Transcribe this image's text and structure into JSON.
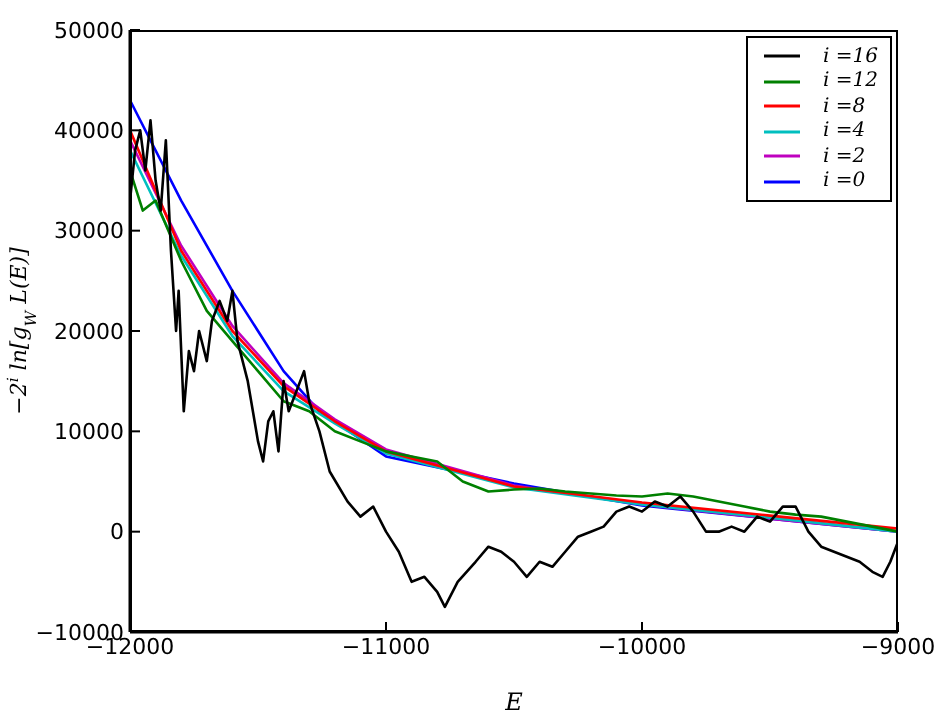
{
  "chart_data": {
    "type": "line",
    "xlabel": "E",
    "ylabel": "−2$^{i}$ ln[g$_{W}$ L(E)]",
    "xlim": [
      -12000,
      -9000
    ],
    "xticks": [
      -12000,
      -11000,
      -10000,
      -9000
    ],
    "ylim": [
      -10000,
      50000
    ],
    "yticks": [
      -10000,
      0,
      10000,
      20000,
      30000,
      40000,
      50000
    ],
    "grid": false,
    "legend": "top right",
    "marker": "none",
    "line_style": "solid",
    "series": [
      {
        "name": "i =16",
        "color": "#000000",
        "x": [
          -12000,
          -11980,
          -11960,
          -11940,
          -11920,
          -11900,
          -11880,
          -11860,
          -11840,
          -11820,
          -11810,
          -11790,
          -11770,
          -11750,
          -11730,
          -11700,
          -11680,
          -11650,
          -11620,
          -11600,
          -11580,
          -11560,
          -11540,
          -11500,
          -11480,
          -11460,
          -11440,
          -11420,
          -11400,
          -11380,
          -11350,
          -11320,
          -11300,
          -11260,
          -11220,
          -11150,
          -11100,
          -11050,
          -11000,
          -10950,
          -10900,
          -10850,
          -10800,
          -10770,
          -10720,
          -10650,
          -10600,
          -10550,
          -10500,
          -10450,
          -10400,
          -10350,
          -10300,
          -10250,
          -10200,
          -10150,
          -10100,
          -10050,
          -10000,
          -9950,
          -9900,
          -9850,
          -9800,
          -9750,
          -9700,
          -9650,
          -9600,
          -9550,
          -9500,
          -9450,
          -9400,
          -9350,
          -9300,
          -9200,
          -9150,
          -9100,
          -9060,
          -9030,
          -9000
        ],
        "values": [
          33000,
          38000,
          40000,
          36000,
          41000,
          35000,
          32000,
          39000,
          28000,
          20000,
          24000,
          12000,
          18000,
          16000,
          20000,
          17000,
          21000,
          23000,
          21000,
          24000,
          19000,
          17000,
          15000,
          9000,
          7000,
          11000,
          12000,
          8000,
          15000,
          12000,
          14000,
          16000,
          13000,
          10000,
          6000,
          3000,
          1500,
          2500,
          0,
          -2000,
          -5000,
          -4500,
          -6000,
          -7500,
          -5000,
          -3000,
          -1500,
          -2000,
          -3000,
          -4500,
          -3000,
          -3500,
          -2000,
          -500,
          0,
          500,
          2000,
          2500,
          2000,
          3000,
          2500,
          3500,
          2000,
          0,
          0,
          500,
          0,
          1500,
          1000,
          2500,
          2500,
          0,
          -1500,
          -2500,
          -3000,
          -4000,
          -4500,
          -3000,
          -1000
        ]
      },
      {
        "name": "i =12",
        "color": "#008000",
        "x": [
          -12000,
          -11950,
          -11900,
          -11850,
          -11800,
          -11700,
          -11600,
          -11500,
          -11400,
          -11300,
          -11200,
          -11100,
          -11000,
          -10900,
          -10800,
          -10700,
          -10600,
          -10500,
          -10400,
          -10300,
          -10200,
          -10100,
          -10000,
          -9900,
          -9800,
          -9700,
          -9600,
          -9500,
          -9400,
          -9300,
          -9200,
          -9100,
          -9000
        ],
        "values": [
          36000,
          32000,
          33000,
          30000,
          27000,
          22000,
          19000,
          16000,
          13000,
          12000,
          10000,
          9000,
          8000,
          7500,
          7000,
          5000,
          4000,
          4200,
          4300,
          4000,
          3800,
          3600,
          3500,
          3800,
          3500,
          3000,
          2500,
          2000,
          1700,
          1500,
          1000,
          500,
          0
        ]
      },
      {
        "name": "i =8",
        "color": "#ff0000",
        "x": [
          -12000,
          -11800,
          -11600,
          -11400,
          -11200,
          -11000,
          -10500,
          -10000,
          -9500,
          -9000
        ],
        "values": [
          40000,
          28000,
          20000,
          14500,
          11000,
          8000,
          4500,
          2900,
          1600,
          300
        ]
      },
      {
        "name": "i =4",
        "color": "#00bfbf",
        "x": [
          -12000,
          -11800,
          -11600,
          -11400,
          -11200,
          -11000,
          -10500,
          -10000,
          -9500,
          -9000
        ],
        "values": [
          38000,
          27500,
          19500,
          14000,
          10800,
          7800,
          4400,
          2700,
          1400,
          0
        ]
      },
      {
        "name": "i =2",
        "color": "#bf00bf",
        "x": [
          -12000,
          -11800,
          -11600,
          -11400,
          -11200,
          -11000,
          -10500,
          -10000,
          -9500,
          -9000
        ],
        "values": [
          39000,
          28500,
          20500,
          14800,
          11200,
          8200,
          4600,
          2700,
          1300,
          0
        ]
      },
      {
        "name": "i =0",
        "color": "#0000ff",
        "x": [
          -12000,
          -11800,
          -11600,
          -11400,
          -11260,
          -11000,
          -10500,
          -10000,
          -9500,
          -9000
        ],
        "values": [
          43000,
          33000,
          24000,
          16000,
          12000,
          7500,
          4800,
          2600,
          1300,
          0
        ]
      }
    ]
  }
}
